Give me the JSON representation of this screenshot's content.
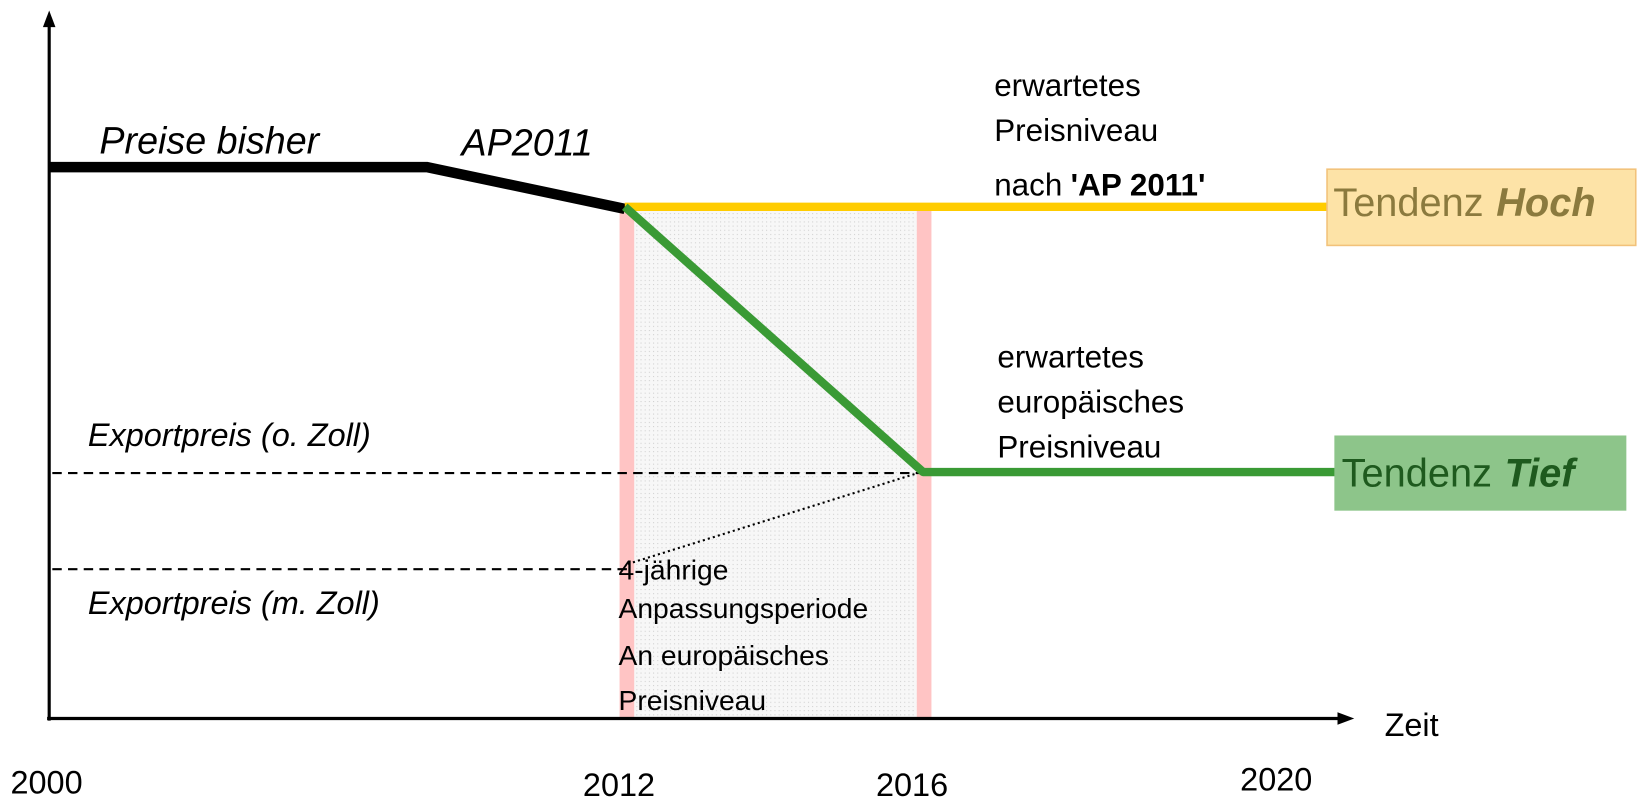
{
  "labels": {
    "prices_before": "Preise bisher",
    "ap2011": "AP2011",
    "expected_high": {
      "lines": [
        "erwartetes",
        "Preisniveau"
      ],
      "nach": "nach",
      "bold": "'AP 2011'"
    },
    "high_box": {
      "prefix": "Tendenz",
      "emph": "Hoch"
    },
    "expected_low": [
      "erwartetes",
      "europäisches",
      "Preisniveau"
    ],
    "low_box": {
      "prefix": "Tendenz",
      "emph": "Tief"
    },
    "export_without_duty": "Exportpreis (o. Zoll)",
    "export_with_duty": "Exportpreis (m. Zoll)",
    "period": [
      "4-jährige",
      "Anpassungsperiode",
      "An europäisches",
      "Preisniveau"
    ],
    "x_axis": "Zeit",
    "years": [
      "2000",
      "2012",
      "2016",
      "2020"
    ]
  }
}
